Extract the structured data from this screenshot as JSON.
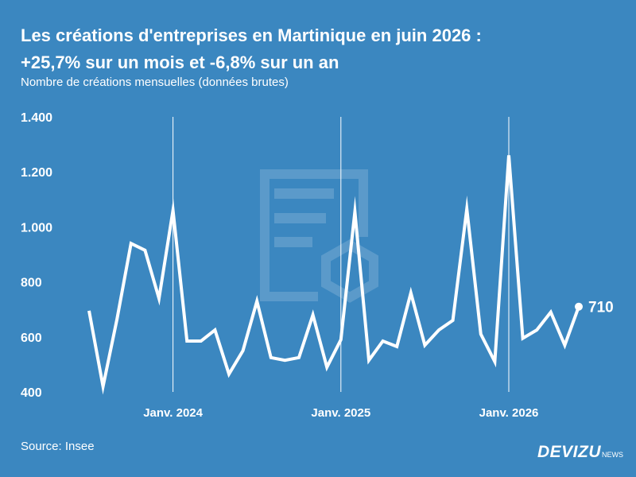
{
  "header": {
    "title_line1": "Les créations d'entreprises en Martinique en juin 2026 :",
    "title_line2": "+25,7% sur un mois et -6,8% sur un an",
    "subtitle": "Nombre de créations mensuelles (données brutes)"
  },
  "footer": {
    "source": "Source: Insee",
    "brand_main": "DEVIZU",
    "brand_sub": "NEWS"
  },
  "colors": {
    "background": "#3b87c0",
    "line": "#ffffff",
    "text": "#ffffff"
  },
  "chart_data": {
    "type": "line",
    "title": "Les créations d'entreprises en Martinique en juin 2026 : +25,7% sur un mois et -6,8% sur un an",
    "subtitle": "Nombre de créations mensuelles (données brutes)",
    "xlabel": "",
    "ylabel": "",
    "ylim": [
      400,
      1400
    ],
    "y_ticks": [
      400,
      600,
      800,
      1000,
      1200,
      1400
    ],
    "y_tick_labels": [
      "400",
      "600",
      "800",
      "1.000",
      "1.200",
      "1.400"
    ],
    "x_tick_labels": [
      "Janv. 2024",
      "Janv. 2025",
      "Janv. 2026"
    ],
    "x_tick_dates": [
      "2024-01",
      "2025-01",
      "2026-01"
    ],
    "x_start": "2023-07",
    "grid": "vertical lines at January",
    "series": [
      {
        "name": "",
        "x": [
          "2023-07",
          "2023-08",
          "2023-09",
          "2023-10",
          "2023-11",
          "2023-12",
          "2024-01",
          "2024-02",
          "2024-03",
          "2024-04",
          "2024-05",
          "2024-06",
          "2024-07",
          "2024-08",
          "2024-09",
          "2024-10",
          "2024-11",
          "2024-12",
          "2025-01",
          "2025-02",
          "2025-03",
          "2025-04",
          "2025-05",
          "2025-06",
          "2025-07",
          "2025-08",
          "2025-09",
          "2025-10",
          "2025-11",
          "2025-12",
          "2026-01",
          "2026-02",
          "2026-03",
          "2026-04",
          "2026-05",
          "2026-06"
        ],
        "values": [
          695,
          420,
          665,
          940,
          915,
          740,
          1060,
          585,
          585,
          625,
          465,
          550,
          730,
          525,
          515,
          525,
          680,
          490,
          590,
          1055,
          515,
          585,
          565,
          760,
          570,
          625,
          660,
          1065,
          610,
          510,
          1260,
          595,
          625,
          690,
          570,
          710
        ]
      }
    ],
    "annotations": [
      {
        "label": "710",
        "at": "2026-06"
      }
    ]
  }
}
